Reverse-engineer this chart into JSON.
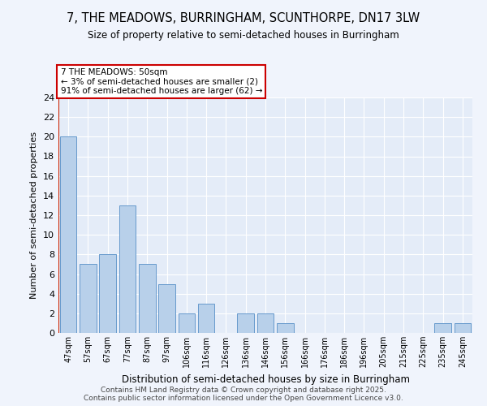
{
  "title1": "7, THE MEADOWS, BURRINGHAM, SCUNTHORPE, DN17 3LW",
  "title2": "Size of property relative to semi-detached houses in Burringham",
  "xlabel": "Distribution of semi-detached houses by size in Burringham",
  "ylabel": "Number of semi-detached properties",
  "categories": [
    "47sqm",
    "57sqm",
    "67sqm",
    "77sqm",
    "87sqm",
    "97sqm",
    "106sqm",
    "116sqm",
    "126sqm",
    "136sqm",
    "146sqm",
    "156sqm",
    "166sqm",
    "176sqm",
    "186sqm",
    "196sqm",
    "205sqm",
    "215sqm",
    "225sqm",
    "235sqm",
    "245sqm"
  ],
  "values": [
    20,
    7,
    8,
    13,
    7,
    5,
    2,
    3,
    0,
    2,
    2,
    1,
    0,
    0,
    0,
    0,
    0,
    0,
    0,
    1,
    1
  ],
  "bar_color": "#b8d0ea",
  "bar_edge_color": "#6699cc",
  "highlight_color": "#cc2200",
  "annotation_title": "7 THE MEADOWS: 50sqm",
  "annotation_line1": "← 3% of semi-detached houses are smaller (2)",
  "annotation_line2": "91% of semi-detached houses are larger (62) →",
  "annotation_box_color": "#ffffff",
  "annotation_box_edge": "#cc0000",
  "ylim": [
    0,
    24
  ],
  "yticks": [
    0,
    2,
    4,
    6,
    8,
    10,
    12,
    14,
    16,
    18,
    20,
    22,
    24
  ],
  "footer1": "Contains HM Land Registry data © Crown copyright and database right 2025.",
  "footer2": "Contains public sector information licensed under the Open Government Licence v3.0.",
  "bg_color": "#f0f4fc",
  "plot_bg_color": "#e4ecf8"
}
